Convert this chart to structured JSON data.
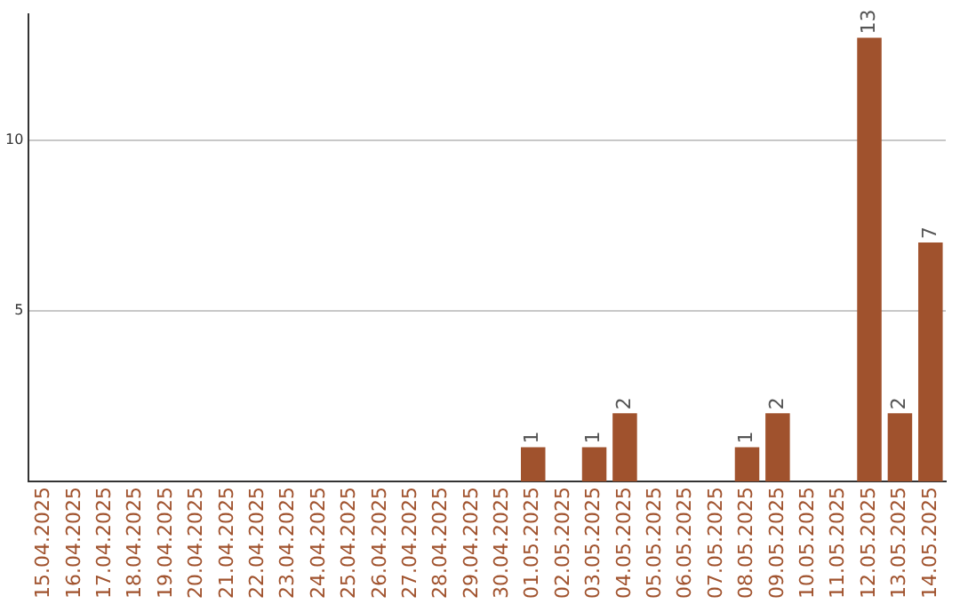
{
  "chart_data": {
    "type": "bar",
    "categories": [
      "15.04.2025",
      "16.04.2025",
      "17.04.2025",
      "18.04.2025",
      "19.04.2025",
      "20.04.2025",
      "21.04.2025",
      "22.04.2025",
      "23.04.2025",
      "24.04.2025",
      "25.04.2025",
      "26.04.2025",
      "27.04.2025",
      "28.04.2025",
      "29.04.2025",
      "30.04.2025",
      "01.05.2025",
      "02.05.2025",
      "03.05.2025",
      "04.05.2025",
      "05.05.2025",
      "06.05.2025",
      "07.05.2025",
      "08.05.2025",
      "09.05.2025",
      "10.05.2025",
      "11.05.2025",
      "12.05.2025",
      "13.05.2025",
      "14.05.2025"
    ],
    "values": [
      0,
      0,
      0,
      0,
      0,
      0,
      0,
      0,
      0,
      0,
      0,
      0,
      0,
      0,
      0,
      0,
      1,
      0,
      1,
      2,
      0,
      0,
      0,
      1,
      2,
      0,
      0,
      13,
      2,
      7
    ],
    "value_labels": [
      null,
      null,
      null,
      null,
      null,
      null,
      null,
      null,
      null,
      null,
      null,
      null,
      null,
      null,
      null,
      null,
      "1",
      null,
      "1",
      "2",
      null,
      null,
      null,
      "1",
      "2",
      null,
      null,
      "13",
      "2",
      "7"
    ],
    "color": "#a0522d",
    "ylim": [
      0,
      13.7
    ],
    "yticks": [
      5,
      10
    ],
    "grid": "y"
  }
}
